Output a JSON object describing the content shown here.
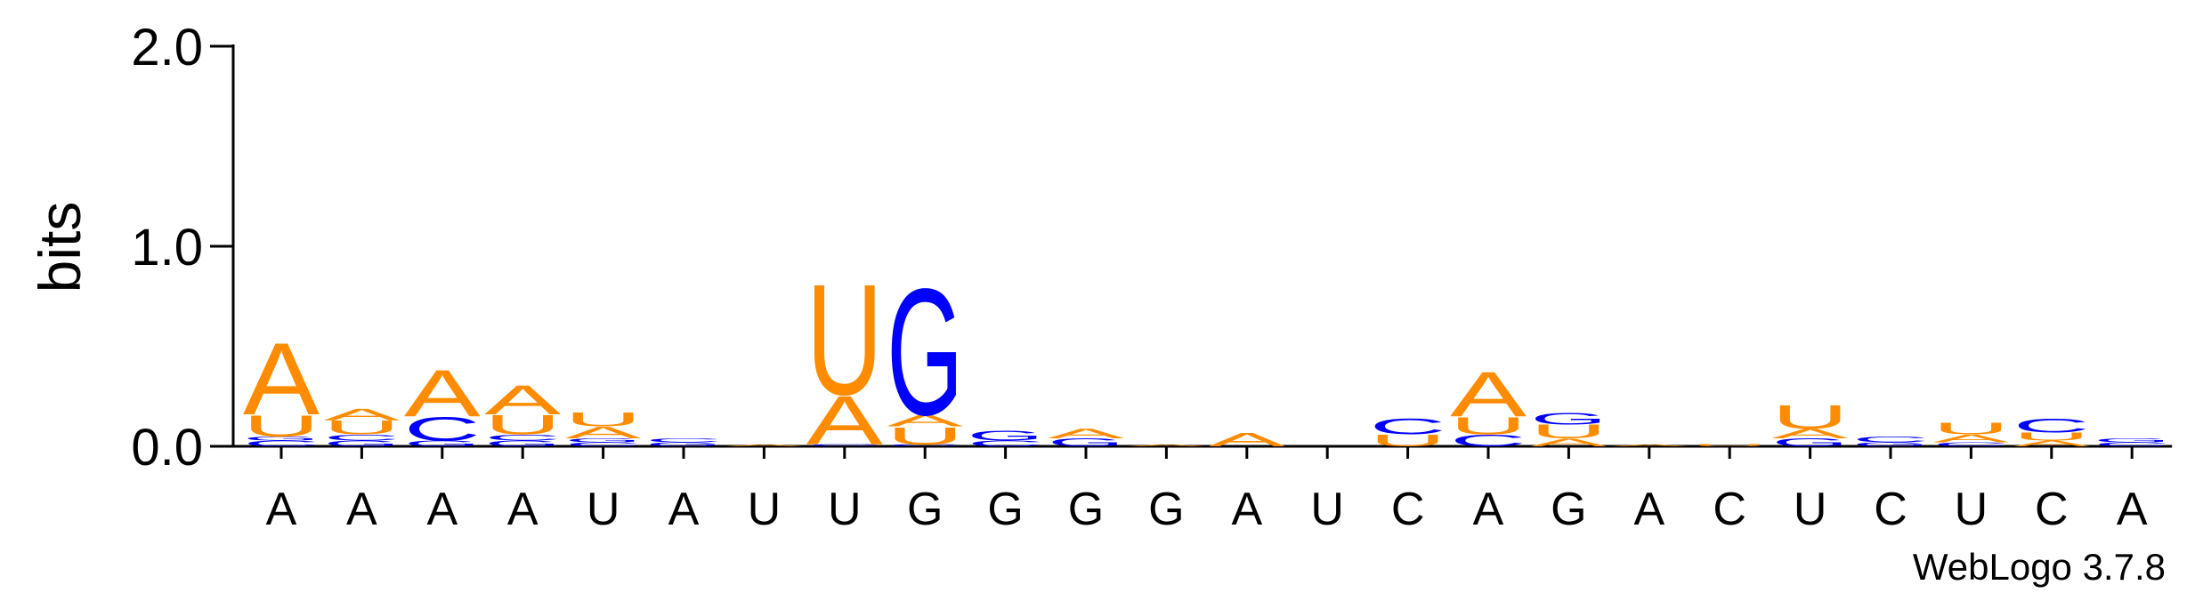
{
  "chart_data": {
    "type": "logo",
    "ylabel": "bits",
    "footer": "WebLogo 3.7.8",
    "ylim": [
      0,
      2
    ],
    "yticks": [
      {
        "value": 0,
        "label": "0.0"
      },
      {
        "value": 1,
        "label": "1.0"
      },
      {
        "value": 2,
        "label": "2.0"
      }
    ],
    "colors": {
      "A": "#ff8c00",
      "U": "#ff8c00",
      "C": "#0000ff",
      "G": "#0000ff"
    },
    "categories": [
      "A",
      "A",
      "A",
      "A",
      "U",
      "A",
      "U",
      "U",
      "G",
      "G",
      "G",
      "G",
      "A",
      "U",
      "C",
      "A",
      "G",
      "A",
      "C",
      "U",
      "C",
      "U",
      "C",
      "A"
    ],
    "stacks": [
      [
        {
          "letter": "C",
          "value": 0.03
        },
        {
          "letter": "G",
          "value": 0.02
        },
        {
          "letter": "U",
          "value": 0.11
        },
        {
          "letter": "A",
          "value": 0.37
        }
      ],
      [
        {
          "letter": "G",
          "value": 0.03
        },
        {
          "letter": "C",
          "value": 0.03
        },
        {
          "letter": "U",
          "value": 0.07
        },
        {
          "letter": "A",
          "value": 0.06
        }
      ],
      [
        {
          "letter": "G",
          "value": 0.03
        },
        {
          "letter": "C",
          "value": 0.12
        },
        {
          "letter": "A",
          "value": 0.24
        }
      ],
      [
        {
          "letter": "G",
          "value": 0.03
        },
        {
          "letter": "C",
          "value": 0.03
        },
        {
          "letter": "U",
          "value": 0.1
        },
        {
          "letter": "A",
          "value": 0.15
        }
      ],
      [
        {
          "letter": "C",
          "value": 0.02
        },
        {
          "letter": "G",
          "value": 0.02
        },
        {
          "letter": "A",
          "value": 0.06
        },
        {
          "letter": "U",
          "value": 0.07
        }
      ],
      [
        {
          "letter": "G",
          "value": 0.02
        },
        {
          "letter": "C",
          "value": 0.02
        }
      ],
      [
        {
          "letter": "A",
          "value": 0.01
        }
      ],
      [
        {
          "letter": "C",
          "value": 0.01
        },
        {
          "letter": "A",
          "value": 0.25
        },
        {
          "letter": "U",
          "value": 0.57
        }
      ],
      [
        {
          "letter": "C",
          "value": 0.01
        },
        {
          "letter": "U",
          "value": 0.09
        },
        {
          "letter": "A",
          "value": 0.06
        },
        {
          "letter": "G",
          "value": 0.65
        }
      ],
      [
        {
          "letter": "C",
          "value": 0.03
        },
        {
          "letter": "G",
          "value": 0.05
        }
      ],
      [
        {
          "letter": "G",
          "value": 0.04
        },
        {
          "letter": "A",
          "value": 0.05
        }
      ],
      [
        {
          "letter": "A",
          "value": 0.01
        }
      ],
      [
        {
          "letter": "A",
          "value": 0.07
        }
      ],
      [],
      [
        {
          "letter": "U",
          "value": 0.06
        },
        {
          "letter": "C",
          "value": 0.08
        }
      ],
      [
        {
          "letter": "C",
          "value": 0.06
        },
        {
          "letter": "U",
          "value": 0.09
        },
        {
          "letter": "A",
          "value": 0.23
        }
      ],
      [
        {
          "letter": "A",
          "value": 0.04
        },
        {
          "letter": "U",
          "value": 0.07
        },
        {
          "letter": "G",
          "value": 0.06
        }
      ],
      [
        {
          "letter": "A",
          "value": 0.01
        }
      ],
      [
        {
          "letter": "U",
          "value": 0.01
        }
      ],
      [
        {
          "letter": "G",
          "value": 0.04
        },
        {
          "letter": "A",
          "value": 0.05
        },
        {
          "letter": "U",
          "value": 0.12
        }
      ],
      [
        {
          "letter": "G",
          "value": 0.02
        },
        {
          "letter": "C",
          "value": 0.03
        }
      ],
      [
        {
          "letter": "C",
          "value": 0.02
        },
        {
          "letter": "A",
          "value": 0.04
        },
        {
          "letter": "U",
          "value": 0.06
        }
      ],
      [
        {
          "letter": "A",
          "value": 0.03
        },
        {
          "letter": "U",
          "value": 0.04
        },
        {
          "letter": "C",
          "value": 0.07
        }
      ],
      [
        {
          "letter": "C",
          "value": 0.02
        },
        {
          "letter": "G",
          "value": 0.02
        }
      ]
    ]
  }
}
